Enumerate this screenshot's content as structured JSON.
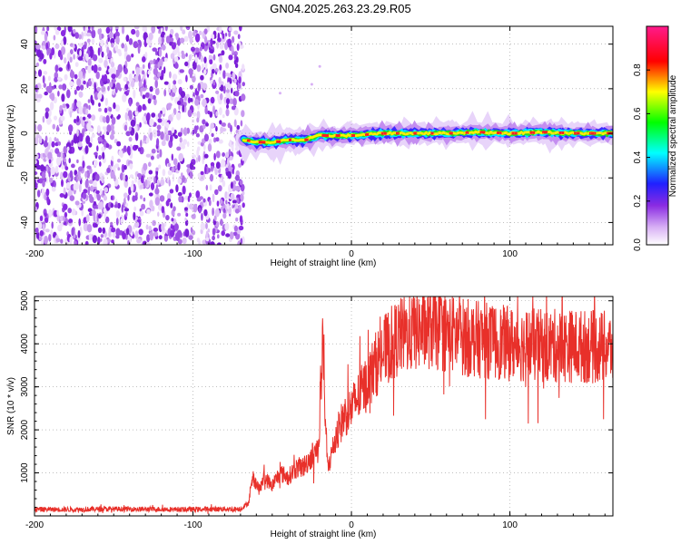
{
  "title": "GN04.2025.263.23.29.R05",
  "colors": {
    "snr_line": "#e8302a",
    "spectrum_noise": "#8a2be2",
    "axis": "#000000"
  },
  "chart_data": [
    {
      "type": "heatmap",
      "name": "spectrogram",
      "xlabel": "Height of straight line (km)",
      "ylabel": "Frequency (Hz)",
      "xlim": [
        -200,
        165
      ],
      "ylim": [
        -50,
        48
      ],
      "x_ticks": [
        -200,
        -100,
        0,
        100
      ],
      "y_ticks": [
        -40,
        -20,
        0,
        20,
        40
      ],
      "noise_region_x": [
        -200,
        -68
      ],
      "signal_region_x": [
        -68,
        165
      ],
      "signal_center_track": [
        {
          "x": -68,
          "y": -3
        },
        {
          "x": -60,
          "y": -4
        },
        {
          "x": -50,
          "y": -4
        },
        {
          "x": -40,
          "y": -3
        },
        {
          "x": -30,
          "y": -3
        },
        {
          "x": -20,
          "y": -1
        },
        {
          "x": -10,
          "y": -1
        },
        {
          "x": 0,
          "y": -1
        },
        {
          "x": 20,
          "y": 0
        },
        {
          "x": 40,
          "y": 0
        },
        {
          "x": 60,
          "y": 0
        },
        {
          "x": 80,
          "y": 0.5
        },
        {
          "x": 100,
          "y": 0
        },
        {
          "x": 120,
          "y": 0.5
        },
        {
          "x": 140,
          "y": 0
        },
        {
          "x": 165,
          "y": 0
        }
      ],
      "colorbar": {
        "label": "Normalized spectral amplitude",
        "range": [
          0,
          1
        ],
        "ticks": [
          "0.0",
          "0.2",
          "0.4",
          "0.6",
          "0.8"
        ]
      }
    },
    {
      "type": "line",
      "name": "snr",
      "xlabel": "Height of straight line (km)",
      "ylabel": "SNR (10 * v/v)",
      "xlim": [
        -200,
        165
      ],
      "ylim": [
        0,
        5100
      ],
      "x_ticks": [
        -200,
        -100,
        0,
        100
      ],
      "y_ticks": [
        1000,
        2000,
        3000,
        4000,
        5000
      ],
      "series": [
        {
          "name": "SNR",
          "x": [
            -200,
            -180,
            -150,
            -120,
            -100,
            -80,
            -70,
            -65,
            -62,
            -58,
            -55,
            -50,
            -45,
            -40,
            -35,
            -30,
            -25,
            -20,
            -18,
            -15,
            -10,
            -5,
            0,
            5,
            10,
            15,
            20,
            25,
            30,
            40,
            50,
            60,
            80,
            100,
            120,
            140,
            165
          ],
          "values": [
            150,
            150,
            160,
            155,
            150,
            160,
            160,
            300,
            900,
            600,
            900,
            700,
            1000,
            900,
            1100,
            1150,
            1400,
            1600,
            3300,
            1100,
            1800,
            2300,
            2500,
            2800,
            3100,
            3500,
            3800,
            4000,
            4150,
            4300,
            4350,
            4250,
            4100,
            4000,
            3950,
            3950,
            3900
          ]
        }
      ]
    }
  ]
}
